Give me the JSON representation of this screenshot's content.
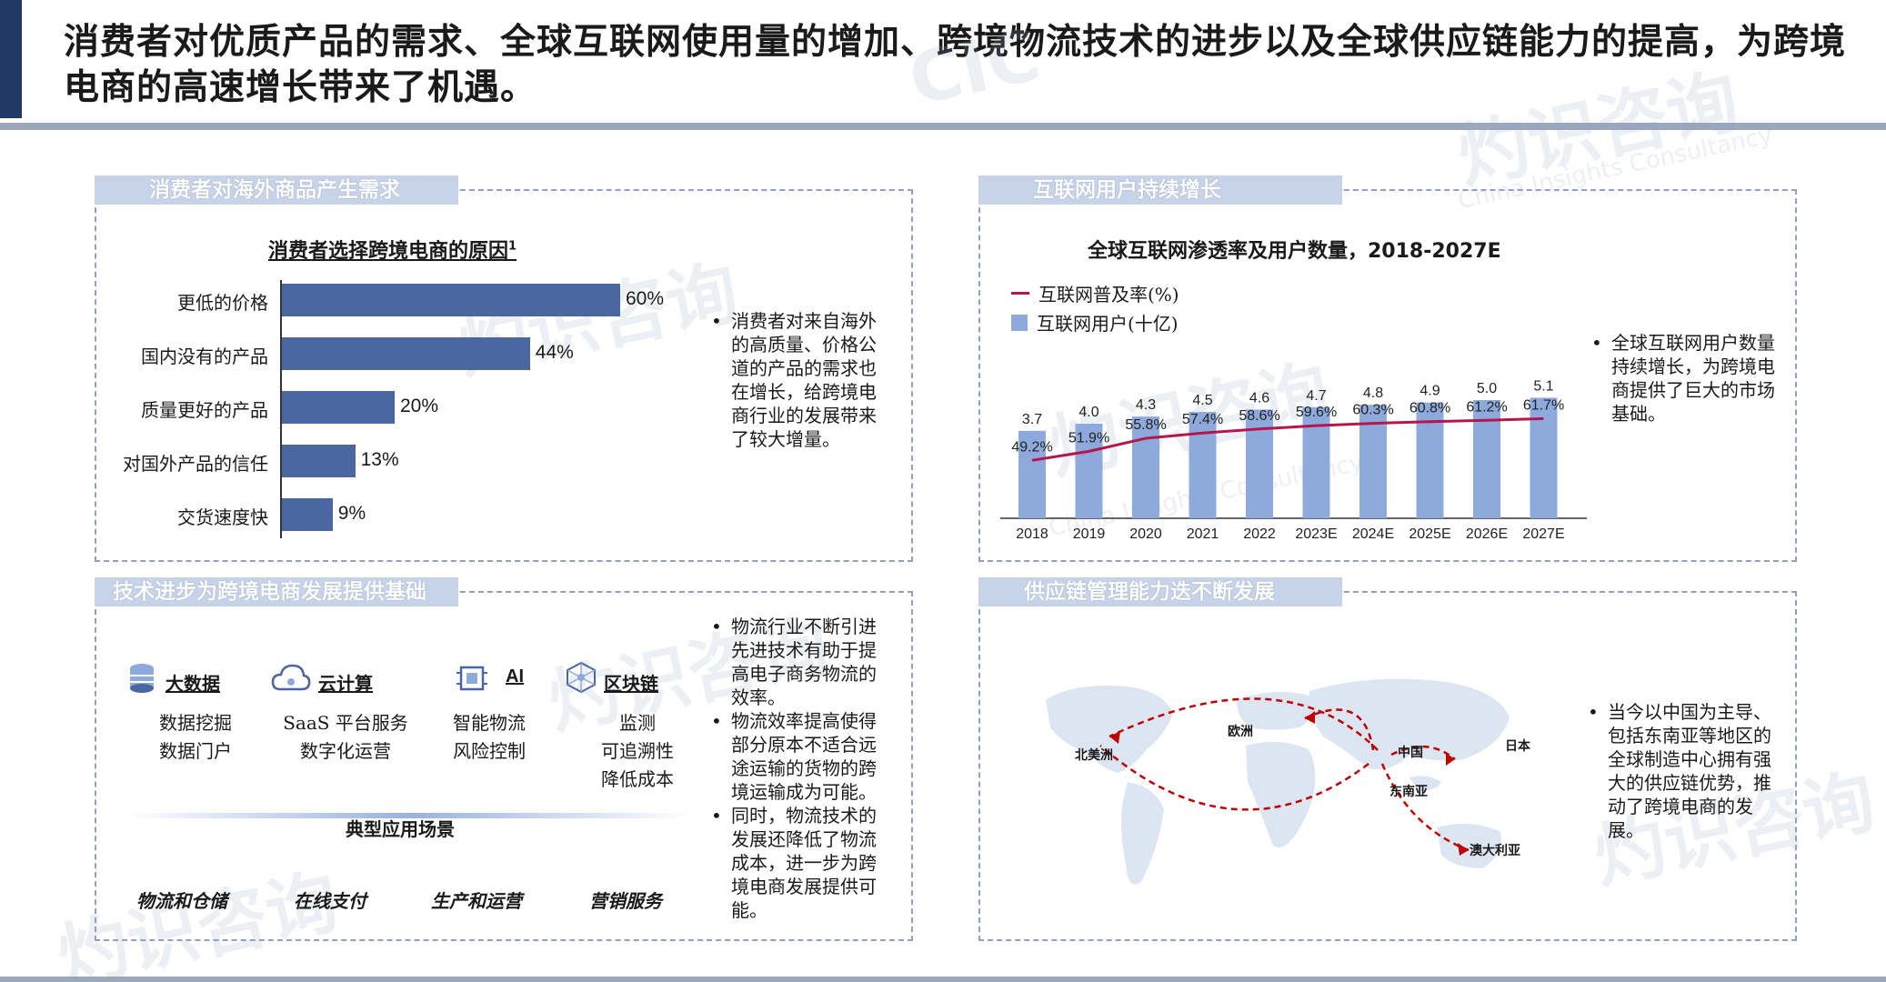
{
  "header": {
    "headline": "消费者对优质产品的需求、全球互联网使用量的增加、跨境物流技术的进步以及全球供应链能力的提高，为跨境电商的高速增长带来了机遇。"
  },
  "watermark": {
    "brand_cn": "灼识咨询",
    "brand_en": "China Insights Consultancy",
    "logo": "CIC"
  },
  "panel_demand": {
    "tab": "消费者对海外商品产生需求",
    "chart_title": "消费者选择跨境电商的原因",
    "footnote_mark": "1",
    "bullet": "消费者对来自海外的高质量、价格公道的产品的需求也在增长，给跨境电商行业的发展带来了较大增量。"
  },
  "panel_internet": {
    "tab": "互联网用户持续增长",
    "chart_title": "全球互联网渗透率及用户数量，2018-2027E",
    "legend_line": "互联网普及率(%)",
    "legend_bar": "互联网用户(十亿)",
    "bullet": "全球互联网用户数量持续增长，为跨境电商提供了巨大的市场基础。"
  },
  "panel_tech": {
    "tab": "技术进步为跨境电商发展提供基础",
    "techs": [
      {
        "name": "大数据",
        "items": [
          "数据挖掘",
          "数据门户"
        ]
      },
      {
        "name": "云计算",
        "items": [
          "SaaS 平台服务",
          "数字化运营"
        ]
      },
      {
        "name": "AI",
        "items": [
          "智能物流",
          "风险控制"
        ]
      },
      {
        "name": "区块链",
        "items": [
          "监测",
          "可追溯性",
          "降低成本"
        ]
      }
    ],
    "scene_title": "典型应用场景",
    "scenes": [
      "物流和仓储",
      "在线支付",
      "生产和运营",
      "营销服务"
    ],
    "bullets": [
      "物流行业不断引进先进技术有助于提高电子商务物流的效率。",
      "物流效率提高使得部分原本不适合远途运输的货物的跨境运输成为可能。",
      "同时，物流技术的发展还降低了物流成本，进一步为跨境电商发展提供可能。"
    ]
  },
  "panel_supply": {
    "tab": "供应链管理能力迭不断发展",
    "map_labels": {
      "north_america": "北美洲",
      "europe": "欧洲",
      "china": "中国",
      "japan": "日本",
      "southeast_asia": "东南亚",
      "australia": "澳大利亚"
    },
    "bullet": "当今以中国为主导、包括东南亚等地区的全球制造中心拥有强大的供应链优势，推动了跨境电商的发展。"
  },
  "colors": {
    "bar_dark": "#4a67a1",
    "bar_light": "#8ea9db",
    "line": "#b5174d",
    "border": "#8ea0c4",
    "tab_bg": "#c7d3e8",
    "map_land": "#dce5f2",
    "route": "#c00000"
  },
  "chart_data": [
    {
      "type": "bar",
      "orientation": "horizontal",
      "title": "消费者选择跨境电商的原因",
      "categories": [
        "更低的价格",
        "国内没有的产品",
        "质量更好的产品",
        "对国外产品的信任",
        "交货速度快"
      ],
      "values": [
        60,
        44,
        20,
        13,
        9
      ],
      "value_labels": [
        "60%",
        "44%",
        "20%",
        "13%",
        "9%"
      ],
      "unit": "%",
      "xlim": [
        0,
        100
      ]
    },
    {
      "type": "bar",
      "title": "全球互联网渗透率及用户数量，2018-2027E",
      "categories": [
        "2018",
        "2019",
        "2020",
        "2021",
        "2022",
        "2023E",
        "2024E",
        "2025E",
        "2026E",
        "2027E"
      ],
      "series": [
        {
          "name": "互联网用户(十亿)",
          "type": "bar",
          "values": [
            3.7,
            4.0,
            4.3,
            4.5,
            4.6,
            4.7,
            4.8,
            4.9,
            5.0,
            5.1
          ],
          "labels": [
            "3.7",
            "4.0",
            "4.3",
            "4.5",
            "4.6",
            "4.7",
            "4.8",
            "4.9",
            "5.0",
            "5.1"
          ]
        },
        {
          "name": "互联网普及率(%)",
          "type": "line",
          "values": [
            49.2,
            51.9,
            55.8,
            57.4,
            58.6,
            59.6,
            60.3,
            60.8,
            61.2,
            61.7
          ],
          "labels": [
            "49.2%",
            "51.9%",
            "55.8%",
            "57.4%",
            "58.6%",
            "59.6%",
            "60.3%",
            "60.8%",
            "61.2%",
            "61.7%"
          ]
        }
      ],
      "legend": "top-left"
    }
  ]
}
